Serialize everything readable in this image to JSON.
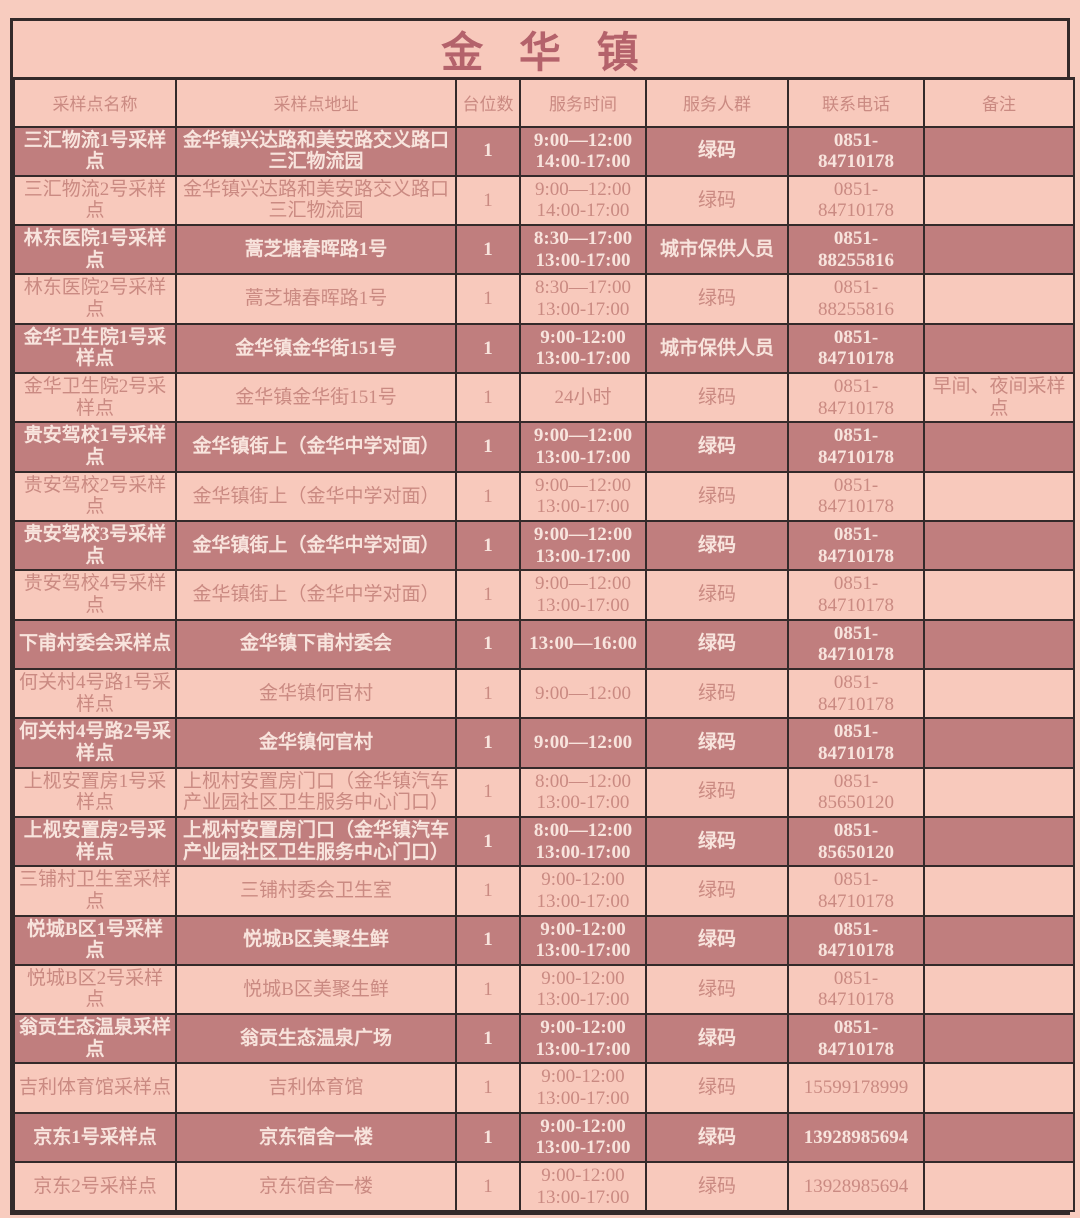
{
  "title": "金华镇",
  "colors": {
    "page_bg": "#f8ccbf",
    "row_dark": "#c07e7e",
    "row_light": "#f8c9bc",
    "text_on_dark": "#f8e4dd",
    "text_rose": "#ca8a82",
    "title_color": "#b4626b",
    "border": "#342a2a"
  },
  "table": {
    "columns": [
      "采样点名称",
      "采样点地址",
      "台位数",
      "服务时间",
      "服务人群",
      "联系电话",
      "备注"
    ],
    "rows": [
      {
        "name": "三汇物流1号采样点",
        "address": "金华镇兴达路和美安路交义路口三汇物流园",
        "stations": "1",
        "hours": [
          "9:00—12:00",
          "14:00-17:00"
        ],
        "group": "绿码",
        "phone": [
          "0851-",
          "84710178"
        ],
        "note": ""
      },
      {
        "name": "三汇物流2号采样点",
        "address": "金华镇兴达路和美安路交义路口三汇物流园",
        "stations": "1",
        "hours": [
          "9:00—12:00",
          "14:00-17:00"
        ],
        "group": "绿码",
        "phone": [
          "0851-",
          "84710178"
        ],
        "note": ""
      },
      {
        "name": "林东医院1号采样点",
        "address": "蒿芝塘春晖路1号",
        "stations": "1",
        "hours": [
          "8:30—17:00",
          "13:00-17:00"
        ],
        "group": "城市保供人员",
        "phone": [
          "0851-",
          "88255816"
        ],
        "note": ""
      },
      {
        "name": "林东医院2号采样点",
        "address": "蒿芝塘春晖路1号",
        "stations": "1",
        "hours": [
          "8:30—17:00",
          "13:00-17:00"
        ],
        "group": "绿码",
        "phone": [
          "0851-",
          "88255816"
        ],
        "note": ""
      },
      {
        "name": "金华卫生院1号采样点",
        "address": "金华镇金华街151号",
        "stations": "1",
        "hours": [
          "9:00-12:00",
          "13:00-17:00"
        ],
        "group": "城市保供人员",
        "phone": [
          "0851-",
          "84710178"
        ],
        "note": ""
      },
      {
        "name": "金华卫生院2号采样点",
        "address": "金华镇金华街151号",
        "stations": "1",
        "hours": [
          "24小时"
        ],
        "group": "绿码",
        "phone": [
          "0851-",
          "84710178"
        ],
        "note": "早间、夜间采样点"
      },
      {
        "name": "贵安驾校1号采样点",
        "address": "金华镇街上（金华中学对面）",
        "stations": "1",
        "hours": [
          "9:00—12:00",
          "13:00-17:00"
        ],
        "group": "绿码",
        "phone": [
          "0851-",
          "84710178"
        ],
        "note": ""
      },
      {
        "name": "贵安驾校2号采样点",
        "address": "金华镇街上（金华中学对面）",
        "stations": "1",
        "hours": [
          "9:00—12:00",
          "13:00-17:00"
        ],
        "group": "绿码",
        "phone": [
          "0851-",
          "84710178"
        ],
        "note": ""
      },
      {
        "name": "贵安驾校3号采样点",
        "address": "金华镇街上（金华中学对面）",
        "stations": "1",
        "hours": [
          "9:00—12:00",
          "13:00-17:00"
        ],
        "group": "绿码",
        "phone": [
          "0851-",
          "84710178"
        ],
        "note": ""
      },
      {
        "name": "贵安驾校4号采样点",
        "address": "金华镇街上（金华中学对面）",
        "stations": "1",
        "hours": [
          "9:00—12:00",
          "13:00-17:00"
        ],
        "group": "绿码",
        "phone": [
          "0851-",
          "84710178"
        ],
        "note": ""
      },
      {
        "name": "下甫村委会采样点",
        "address": "金华镇下甫村委会",
        "stations": "1",
        "hours": [
          "13:00—16:00"
        ],
        "group": "绿码",
        "phone": [
          "0851-",
          "84710178"
        ],
        "note": ""
      },
      {
        "name": "何关村4号路1号采样点",
        "address": "金华镇何官村",
        "stations": "1",
        "hours": [
          "9:00—12:00"
        ],
        "group": "绿码",
        "phone": [
          "0851-",
          "84710178"
        ],
        "note": ""
      },
      {
        "name": "何关村4号路2号采样点",
        "address": "金华镇何官村",
        "stations": "1",
        "hours": [
          "9:00—12:00"
        ],
        "group": "绿码",
        "phone": [
          "0851-",
          "84710178"
        ],
        "note": ""
      },
      {
        "name": "上枧安置房1号采样点",
        "address": "上枧村安置房门口（金华镇汽车产业园社区卫生服务中心门口）",
        "stations": "1",
        "hours": [
          "8:00—12:00",
          "13:00-17:00"
        ],
        "group": "绿码",
        "phone": [
          "0851-",
          "85650120"
        ],
        "note": ""
      },
      {
        "name": "上枧安置房2号采样点",
        "address": "上枧村安置房门口（金华镇汽车产业园社区卫生服务中心门口）",
        "stations": "1",
        "hours": [
          "8:00—12:00",
          "13:00-17:00"
        ],
        "group": "绿码",
        "phone": [
          "0851-",
          "85650120"
        ],
        "note": ""
      },
      {
        "name": "三铺村卫生室采样点",
        "address": "三铺村委会卫生室",
        "stations": "1",
        "hours": [
          "9:00-12:00",
          "13:00-17:00"
        ],
        "group": "绿码",
        "phone": [
          "0851-",
          "84710178"
        ],
        "note": ""
      },
      {
        "name": "悦城B区1号采样点",
        "address": "悦城B区美聚生鲜",
        "stations": "1",
        "hours": [
          "9:00-12:00",
          "13:00-17:00"
        ],
        "group": "绿码",
        "phone": [
          "0851-",
          "84710178"
        ],
        "note": ""
      },
      {
        "name": "悦城B区2号采样点",
        "address": "悦城B区美聚生鲜",
        "stations": "1",
        "hours": [
          "9:00-12:00",
          "13:00-17:00"
        ],
        "group": "绿码",
        "phone": [
          "0851-",
          "84710178"
        ],
        "note": ""
      },
      {
        "name": "翁贡生态温泉采样点",
        "address": "翁贡生态温泉广场",
        "stations": "1",
        "hours": [
          "9:00-12:00",
          "13:00-17:00"
        ],
        "group": "绿码",
        "phone": [
          "0851-",
          "84710178"
        ],
        "note": ""
      },
      {
        "name": "吉利体育馆采样点",
        "address": "吉利体育馆",
        "stations": "1",
        "hours": [
          "9:00-12:00",
          "13:00-17:00"
        ],
        "group": "绿码",
        "phone": [
          "15599178999"
        ],
        "note": ""
      },
      {
        "name": "京东1号采样点",
        "address": "京东宿舍一楼",
        "stations": "1",
        "hours": [
          "9:00-12:00",
          "13:00-17:00"
        ],
        "group": "绿码",
        "phone": [
          "13928985694"
        ],
        "note": ""
      },
      {
        "name": "京东2号采样点",
        "address": "京东宿舍一楼",
        "stations": "1",
        "hours": [
          "9:00-12:00",
          "13:00-17:00"
        ],
        "group": "绿码",
        "phone": [
          "13928985694"
        ],
        "note": ""
      }
    ]
  }
}
